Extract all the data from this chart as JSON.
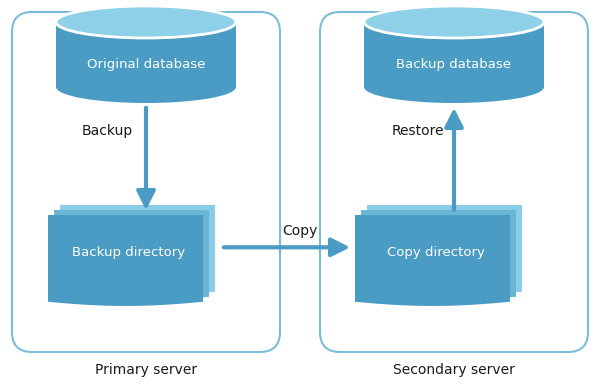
{
  "bg_color": "#ffffff",
  "cyl_body_color": "#4a9cc5",
  "cyl_top_color": "#8dd0e8",
  "cyl_side_color": "#3a8ab5",
  "arrow_color": "#4a9cc5",
  "border_color": "#7bbcda",
  "page_front_color": "#4a9cc5",
  "page_mid_color": "#6ab4d4",
  "page_back_color": "#8acde8",
  "text_white": "#ffffff",
  "text_dark": "#1a1a1a",
  "primary_label": "Primary server",
  "secondary_label": "Secondary server",
  "backup_label": "Backup",
  "restore_label": "Restore",
  "copy_label": "Copy",
  "orig_db_label": "Original database",
  "backup_db_label": "Backup database",
  "backup_dir_label": "Backup directory",
  "copy_dir_label": "Copy directory"
}
